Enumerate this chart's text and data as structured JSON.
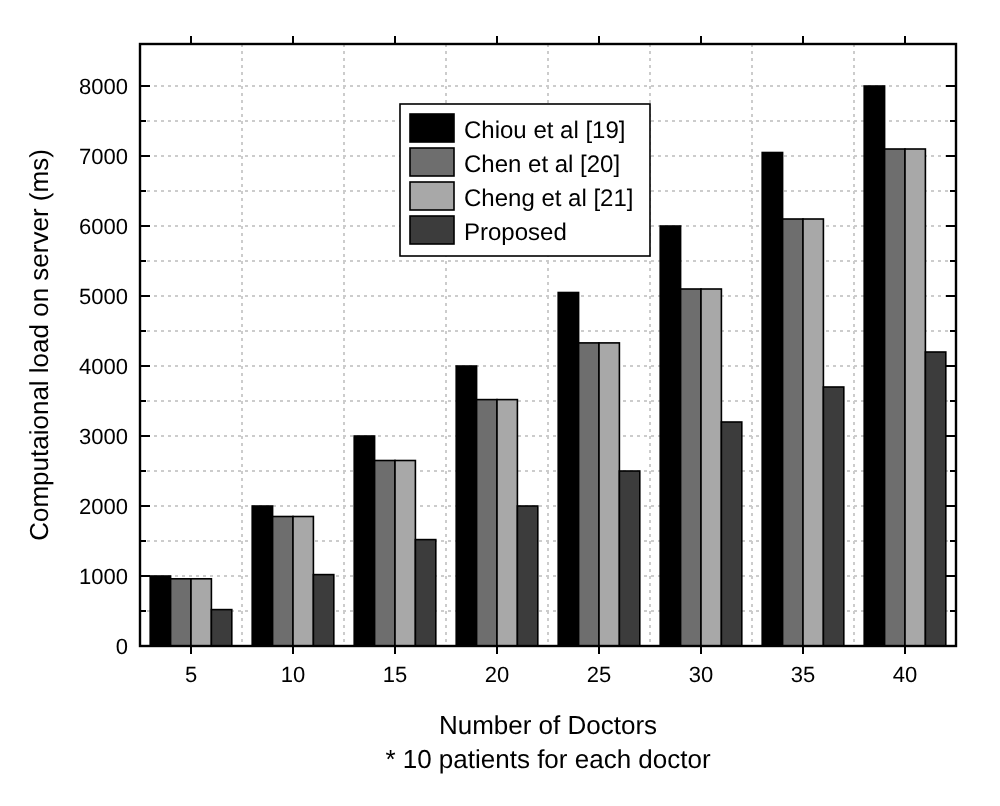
{
  "chart_data": {
    "type": "bar",
    "xlabel": "Number of Doctors",
    "ylabel": "Computaional load on server (ms)",
    "annotations": [
      "* 10 patients for each doctor"
    ],
    "categories": [
      "5",
      "10",
      "15",
      "20",
      "25",
      "30",
      "35",
      "40"
    ],
    "series": [
      {
        "name": "Chiou et al [19]",
        "color": "#000000",
        "values": [
          1000,
          2000,
          3000,
          4000,
          5050,
          6000,
          7050,
          8000
        ]
      },
      {
        "name": "Chen et al [20]",
        "color": "#6e6e6e",
        "values": [
          960,
          1850,
          2650,
          3520,
          4330,
          5100,
          6100,
          7100
        ]
      },
      {
        "name": "Cheng et al [21]",
        "color": "#a8a8a8",
        "values": [
          960,
          1850,
          2650,
          3520,
          4330,
          5100,
          6100,
          7100
        ]
      },
      {
        "name": "Proposed",
        "color": "#3c3c3c",
        "values": [
          520,
          1020,
          1520,
          2000,
          2500,
          3200,
          3700,
          4200
        ]
      }
    ],
    "ylim": [
      0,
      8600
    ],
    "yticks": [
      0,
      {
        "value": 500,
        "label": null
      },
      1000,
      {
        "value": 1500,
        "label": null
      },
      2000,
      {
        "value": 2500,
        "label": null
      },
      3000,
      {
        "value": 3500,
        "label": null
      },
      4000,
      {
        "value": 4500,
        "label": null
      },
      5000,
      {
        "value": 5500,
        "label": null
      },
      6000,
      {
        "value": 6500,
        "label": null
      },
      7000,
      {
        "value": 7500,
        "label": null
      },
      8000
    ],
    "grid": true,
    "legend": "top left"
  }
}
